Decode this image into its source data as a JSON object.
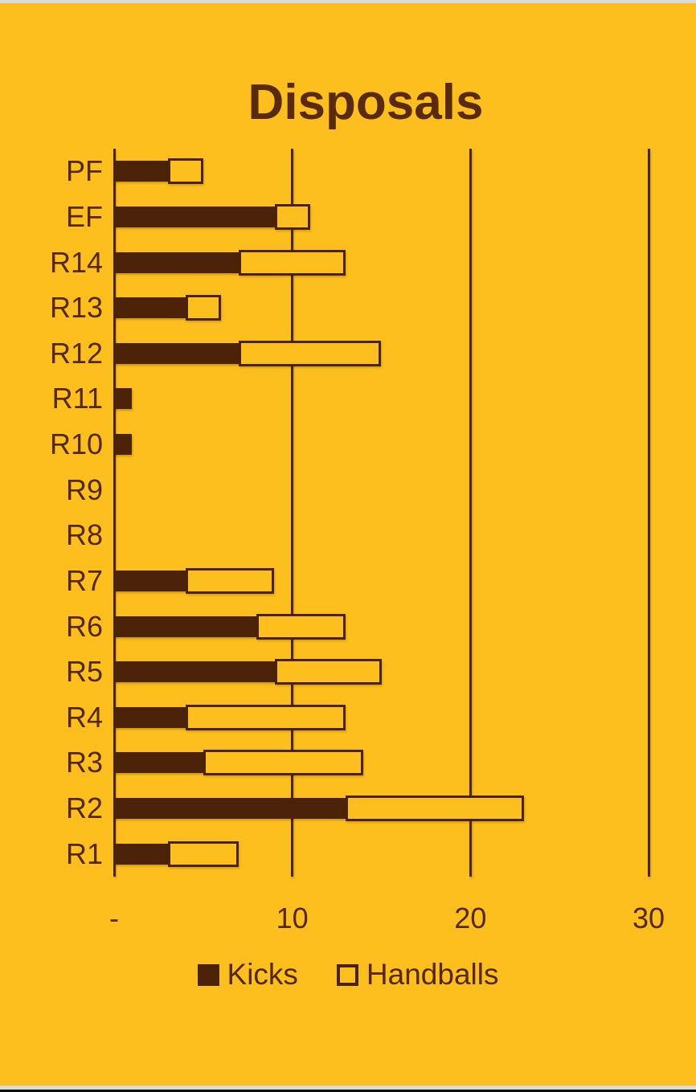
{
  "page": {
    "background_color": "#FCBF1D",
    "bar_color": "#4C2308",
    "text_color": "#542808",
    "title_color": "#5A2A0F",
    "top_band_color": "#D7DADF",
    "bottom_band_colors": [
      "#D9D9D9",
      "#0E0E0E"
    ]
  },
  "chart_data": {
    "type": "bar",
    "orientation": "horizontal",
    "stacked": true,
    "title": "Disposals",
    "categories": [
      "PF",
      "EF",
      "R14",
      "R13",
      "R12",
      "R11",
      "R10",
      "R9",
      "R8",
      "R7",
      "R6",
      "R5",
      "R4",
      "R3",
      "R2",
      "R1"
    ],
    "series": [
      {
        "name": "Kicks",
        "values": [
          3,
          9,
          7,
          4,
          7,
          1,
          1,
          0,
          0,
          4,
          8,
          9,
          4,
          5,
          13,
          3
        ]
      },
      {
        "name": "Handballs",
        "values": [
          2,
          2,
          6,
          2,
          8,
          0,
          0,
          0,
          0,
          5,
          5,
          6,
          9,
          9,
          10,
          4
        ]
      }
    ],
    "x_axis": {
      "tick_labels": [
        "-",
        "10",
        "20",
        "30"
      ],
      "tick_values": [
        0,
        10,
        20,
        30
      ],
      "min": 0,
      "max": 30,
      "gridlines": true
    },
    "legend": {
      "position": "bottom",
      "entries": [
        "Kicks",
        "Handballs"
      ]
    },
    "colors": {
      "kicks_fill": "#4C2308",
      "handballs_fill": "#FCBF1D",
      "handballs_border": "#4A2208"
    }
  },
  "legend": {
    "kicks_label": "Kicks",
    "handballs_label": "Handballs"
  }
}
